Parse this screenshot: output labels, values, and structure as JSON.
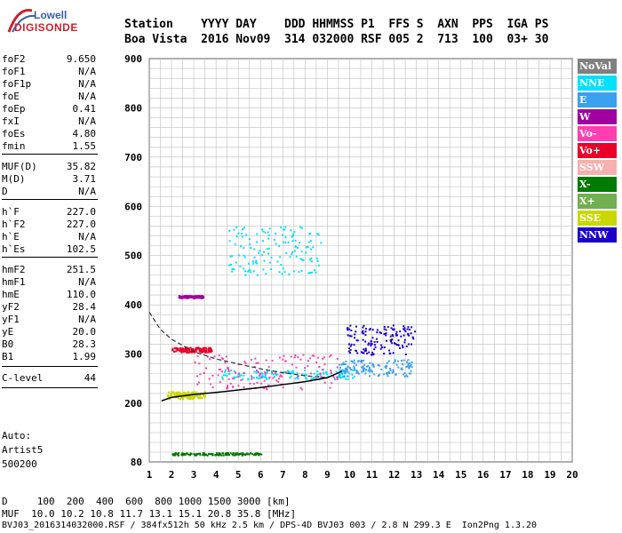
{
  "logo": {
    "line1": "Lowell",
    "line2": "DIGISONDE"
  },
  "header": {
    "line1": "Station    YYYY DAY    DDD HHMMSS P1  FFS S  AXN  PPS  IGA PS",
    "line2": "Boa Vista  2016 Nov09  314 032000 RSF 005 2  713  100  03+ 30"
  },
  "params": [
    {
      "k": "foF2",
      "v": "9.650"
    },
    {
      "k": "foF1",
      "v": "N/A"
    },
    {
      "k": "foF1p",
      "v": "N/A"
    },
    {
      "k": "foE",
      "v": "N/A"
    },
    {
      "k": "foEp",
      "v": "0.41"
    },
    {
      "k": "fxI",
      "v": "N/A"
    },
    {
      "k": "foEs",
      "v": "4.80"
    },
    {
      "k": "fmin",
      "v": "1.55"
    },
    {
      "k": "MUF(D)",
      "v": "35.82"
    },
    {
      "k": "M(D)",
      "v": "3.71"
    },
    {
      "k": "D",
      "v": "N/A"
    },
    {
      "k": "h`F",
      "v": "227.0"
    },
    {
      "k": "h`F2",
      "v": "227.0"
    },
    {
      "k": "h`E",
      "v": "N/A"
    },
    {
      "k": "h`Es",
      "v": "102.5"
    },
    {
      "k": "hmF2",
      "v": "251.5"
    },
    {
      "k": "hmF1",
      "v": "N/A"
    },
    {
      "k": "hmE",
      "v": "110.0"
    },
    {
      "k": "yF2",
      "v": "28.4"
    },
    {
      "k": "yF1",
      "v": "N/A"
    },
    {
      "k": "yE",
      "v": "20.0"
    },
    {
      "k": "B0",
      "v": "28.3"
    },
    {
      "k": "B1",
      "v": "1.99"
    },
    {
      "k": "C-level",
      "v": "44"
    }
  ],
  "auto": {
    "l1": "Auto:",
    "l2": "Artist5",
    "l3": "500200"
  },
  "legend": [
    {
      "name": "NoVal",
      "color": "#808080"
    },
    {
      "name": "NNE",
      "color": "#00e0ff"
    },
    {
      "name": "E",
      "color": "#3aa0f0"
    },
    {
      "name": "W",
      "color": "#a000a0"
    },
    {
      "name": "Vo-",
      "color": "#ff3fb0"
    },
    {
      "name": "Vo+",
      "color": "#e8002a"
    },
    {
      "name": "SSW",
      "color": "#f5b0b0"
    },
    {
      "name": "X-",
      "color": "#007a00"
    },
    {
      "name": "X+",
      "color": "#70b050"
    },
    {
      "name": "SSE",
      "color": "#c8d800"
    },
    {
      "name": "NNW",
      "color": "#1a00c8"
    }
  ],
  "footer": {
    "l1": "D     100  200  400  600  800 1000 1500 3000 [km]",
    "l2": "MUF  10.0 10.2 10.8 11.7 13.1 15.1 20.8 35.8 [MHz]",
    "l3": "BVJ03_2016314032000.RSF / 384fx512h 50 kHz 2.5 km / DPS-4D BVJ03 003 / 2.8 N 299.3 E  Ion2Png 1.3.20"
  },
  "chart_data": {
    "type": "scatter",
    "xlabel": "",
    "ylabel": "",
    "xlim": [
      1,
      20
    ],
    "ylim": [
      80,
      900
    ],
    "xticks": [
      1,
      2,
      3,
      4,
      5,
      6,
      7,
      8,
      9,
      10,
      11,
      12,
      13,
      14,
      15,
      16,
      17,
      18,
      19,
      20
    ],
    "yticks": [
      80,
      200,
      300,
      400,
      500,
      600,
      700,
      800,
      900
    ],
    "grid": true,
    "y_scale": "nonlinear (80-200 compressed)",
    "trace_O": [
      [
        1.55,
        205
      ],
      [
        2,
        212
      ],
      [
        3,
        218
      ],
      [
        4,
        222
      ],
      [
        5,
        227
      ],
      [
        6,
        232
      ],
      [
        7,
        238
      ],
      [
        8,
        244
      ],
      [
        9,
        252
      ],
      [
        9.65,
        265
      ]
    ],
    "profile": [
      [
        1,
        385
      ],
      [
        1.5,
        350
      ],
      [
        2,
        330
      ],
      [
        3,
        305
      ],
      [
        4,
        290
      ],
      [
        5,
        280
      ],
      [
        6,
        270
      ],
      [
        7,
        262
      ],
      [
        8,
        256
      ],
      [
        9,
        252
      ]
    ],
    "clusters": [
      {
        "series": "NNE",
        "x": [
          4.2,
          10.2
        ],
        "y": [
          250,
          270
        ]
      },
      {
        "series": "E",
        "x": [
          9.5,
          12.8
        ],
        "y": [
          255,
          290
        ]
      },
      {
        "series": "Vo+",
        "x": [
          2,
          3.8
        ],
        "y": [
          305,
          315
        ]
      },
      {
        "series": "Vo-",
        "x": [
          3,
          9.5
        ],
        "y": [
          230,
          300
        ]
      },
      {
        "series": "NNW",
        "x": [
          9.8,
          12.9
        ],
        "y": [
          300,
          360
        ]
      },
      {
        "series": "X-",
        "x": [
          2,
          6
        ],
        "y": [
          95,
          100
        ]
      },
      {
        "series": "SSE",
        "x": [
          1.8,
          3.5
        ],
        "y": [
          210,
          225
        ]
      },
      {
        "series": "NNE",
        "x": [
          4.5,
          8.8
        ],
        "y": [
          460,
          560
        ]
      },
      {
        "series": "W",
        "x": [
          2.3,
          3.4
        ],
        "y": [
          415,
          420
        ]
      }
    ]
  }
}
